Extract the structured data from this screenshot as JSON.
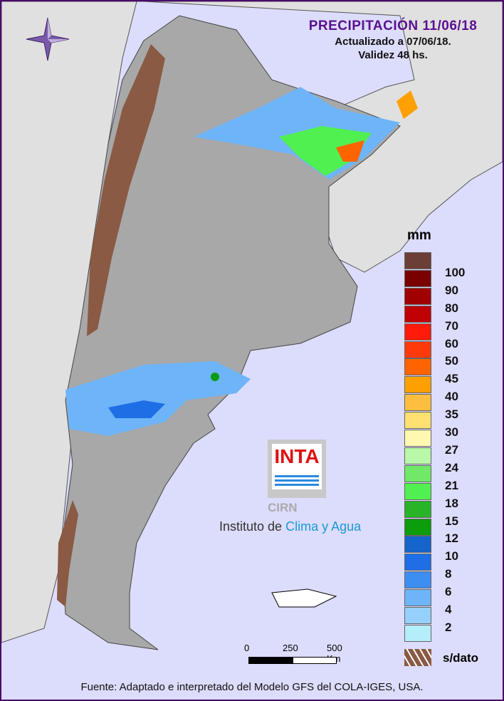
{
  "header": {
    "title": "PRECIPITACIÓN 11/06/18",
    "updated": "Actualizado a 07/06/18.",
    "validity": "Validez 48 hs."
  },
  "legend": {
    "unit": "mm",
    "colors": [
      "#6b3e36",
      "#7a0000",
      "#a00000",
      "#c00000",
      "#ff1a0a",
      "#ff3a0a",
      "#ff6400",
      "#ffa000",
      "#ffbe40",
      "#ffe070",
      "#fff8b0",
      "#b8f8a8",
      "#70e868",
      "#50f050",
      "#28b428",
      "#0c9c0c",
      "#1464cc",
      "#1e6ee6",
      "#3c8ef0",
      "#6eb4f8",
      "#96d0fc",
      "#b4eefa"
    ],
    "labels": [
      "100",
      "90",
      "80",
      "70",
      "60",
      "50",
      "45",
      "40",
      "35",
      "30",
      "27",
      "24",
      "21",
      "18",
      "15",
      "12",
      "10",
      "8",
      "6",
      "4",
      "2"
    ],
    "no_data": "s/dato",
    "no_data_color": "#8a5a44"
  },
  "scale": {
    "labels": [
      "0",
      "250",
      "500 Km"
    ]
  },
  "logo": {
    "brand": "INTA",
    "unit": "CIRN",
    "institute_prefix": "Instituto de",
    "institute_highlight": "Clima y Agua"
  },
  "footer": {
    "source": "Fuente: Adaptado e interpretado del Modelo GFS del COLA-IGES, USA."
  },
  "icons": {
    "compass": "compass-rose-icon"
  },
  "colors": {
    "ocean": "#dcdcfc",
    "land": "#a8a8a8",
    "neighbor_land": "#e0e0e0",
    "frame": "#4a0a6a"
  }
}
